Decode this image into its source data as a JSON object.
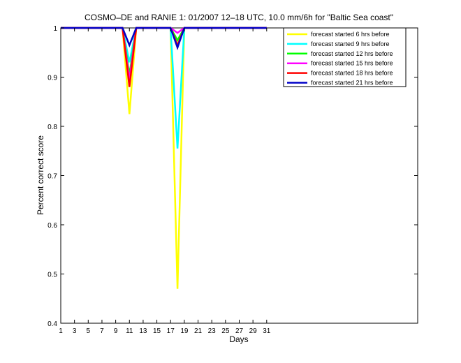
{
  "chart_data": {
    "type": "line",
    "title": "COSMO–DE and RANIE 1: 01/2007 12–18 UTC, 10.0 mm/6h for \"Baltic Sea coast\"",
    "xlabel": "Days",
    "ylabel": "Percent correct score",
    "xlim": [
      1,
      53
    ],
    "ylim": [
      0.4,
      1.0
    ],
    "xticks": [
      1,
      3,
      5,
      7,
      9,
      11,
      13,
      15,
      17,
      19,
      21,
      23,
      25,
      27,
      29,
      31
    ],
    "yticks": [
      0.4,
      0.5,
      0.6,
      0.7,
      0.8,
      0.9,
      1
    ],
    "ytick_labels": [
      "0.4",
      "0.5",
      "0.6",
      "0.7",
      "0.8",
      "0.9",
      "1"
    ],
    "legend_position": "top-right",
    "grid": false,
    "series": [
      {
        "name": "forecast started 6 hrs before",
        "color": "#ffff00",
        "x": [
          1,
          10,
          11,
          12,
          17,
          18,
          19,
          31
        ],
        "y": [
          1,
          1,
          0.825,
          1,
          1,
          0.47,
          1,
          1
        ]
      },
      {
        "name": "forecast started 9 hrs before",
        "color": "#00ffff",
        "x": [
          1,
          10,
          11,
          12,
          17,
          18,
          19,
          31
        ],
        "y": [
          1,
          1,
          0.93,
          1,
          1,
          0.755,
          1,
          1
        ]
      },
      {
        "name": "forecast started 12 hrs before",
        "color": "#00ff00",
        "x": [
          1,
          10,
          11,
          12,
          17,
          18,
          19,
          31
        ],
        "y": [
          1,
          1,
          0.905,
          1,
          1,
          0.975,
          1,
          1
        ]
      },
      {
        "name": "forecast started 15 hrs before",
        "color": "#ff00ff",
        "x": [
          1,
          10,
          11,
          12,
          17,
          18,
          19,
          31
        ],
        "y": [
          1,
          1,
          0.895,
          1,
          1,
          0.99,
          1,
          1
        ]
      },
      {
        "name": "forecast started 18 hrs before",
        "color": "#ff0000",
        "x": [
          1,
          10,
          11,
          12,
          17,
          18,
          19,
          31
        ],
        "y": [
          1,
          1,
          0.88,
          1,
          1,
          0.965,
          1,
          1
        ]
      },
      {
        "name": "forecast started 21 hrs before",
        "color": "#0000c8",
        "x": [
          1,
          10,
          11,
          12,
          17,
          18,
          19,
          31
        ],
        "y": [
          1,
          1,
          0.965,
          1,
          1,
          0.96,
          1,
          1
        ]
      }
    ]
  }
}
